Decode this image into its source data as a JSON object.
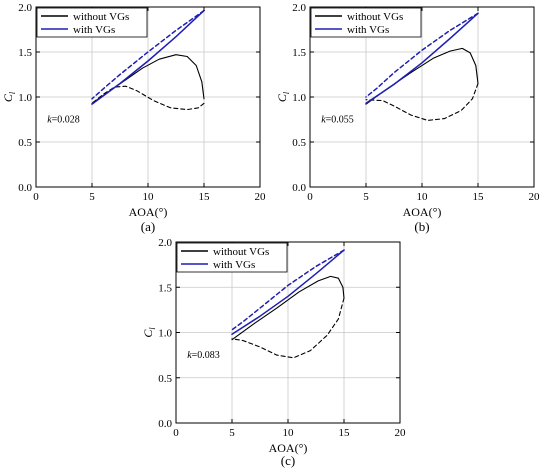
{
  "chart_data": [
    {
      "type": "line",
      "panel_label": "(a)",
      "annotation": {
        "k_symbol": "k",
        "value": "=0.028"
      },
      "xlabel": "AOA(°)",
      "ylabel": {
        "symbol": "C",
        "subscript": "l"
      },
      "xlim": [
        0,
        20
      ],
      "ylim": [
        0.0,
        2.0
      ],
      "xticks": [
        "0",
        "5",
        "10",
        "15",
        "20"
      ],
      "yticks": [
        "0.0",
        "0.5",
        "1.0",
        "1.5",
        "2.0"
      ],
      "grid": true,
      "legend_position": "top-left",
      "series": [
        {
          "name": "without VGs",
          "color": "#000000",
          "segment": "upstroke",
          "dash": false,
          "x": [
            5.0,
            6.5,
            8.0,
            9.5,
            11.0,
            12.5,
            13.5,
            14.3,
            14.8,
            15.0
          ],
          "y": [
            0.93,
            1.06,
            1.19,
            1.32,
            1.42,
            1.47,
            1.45,
            1.35,
            1.17,
            0.98
          ]
        },
        {
          "name": "without VGs",
          "color": "#000000",
          "segment": "downstroke",
          "dash": true,
          "x": [
            15.0,
            14.5,
            13.5,
            12.0,
            10.5,
            9.0,
            8.0,
            7.0,
            6.0,
            5.0
          ],
          "y": [
            0.93,
            0.88,
            0.86,
            0.88,
            0.96,
            1.07,
            1.12,
            1.11,
            1.03,
            0.93
          ]
        },
        {
          "name": "with VGs",
          "color": "#1f1fb4",
          "segment": "upstroke",
          "dash": false,
          "x": [
            5.0,
            7.5,
            10.0,
            12.5,
            15.0
          ],
          "y": [
            0.92,
            1.15,
            1.4,
            1.67,
            1.96
          ]
        },
        {
          "name": "with VGs",
          "color": "#1f1fb4",
          "segment": "downstroke",
          "dash": true,
          "x": [
            15.0,
            12.5,
            10.0,
            7.5,
            6.0,
            5.0
          ],
          "y": [
            1.96,
            1.74,
            1.5,
            1.25,
            1.09,
            0.98
          ]
        }
      ]
    },
    {
      "type": "line",
      "panel_label": "(b)",
      "annotation": {
        "k_symbol": "k",
        "value": "=0.055"
      },
      "xlabel": "AOA(°)",
      "ylabel": {
        "symbol": "C",
        "subscript": "l"
      },
      "xlim": [
        0,
        20
      ],
      "ylim": [
        0.0,
        2.0
      ],
      "xticks": [
        "0",
        "5",
        "10",
        "15",
        "20"
      ],
      "yticks": [
        "0.0",
        "0.5",
        "1.0",
        "1.5",
        "2.0"
      ],
      "grid": true,
      "legend_position": "top-left",
      "series": [
        {
          "name": "without VGs",
          "color": "#000000",
          "segment": "upstroke",
          "dash": false,
          "x": [
            5.0,
            7.0,
            9.0,
            11.0,
            12.5,
            13.6,
            14.3,
            14.8,
            15.0
          ],
          "y": [
            0.92,
            1.1,
            1.27,
            1.43,
            1.51,
            1.54,
            1.49,
            1.35,
            1.15
          ]
        },
        {
          "name": "without VGs",
          "color": "#000000",
          "segment": "downstroke",
          "dash": true,
          "x": [
            15.0,
            14.5,
            13.5,
            12.0,
            10.5,
            9.0,
            7.5,
            6.5,
            5.0
          ],
          "y": [
            1.15,
            0.98,
            0.85,
            0.76,
            0.74,
            0.8,
            0.9,
            0.96,
            0.97
          ]
        },
        {
          "name": "with VGs",
          "color": "#1f1fb4",
          "segment": "upstroke",
          "dash": false,
          "x": [
            5.0,
            7.5,
            10.0,
            12.5,
            15.0
          ],
          "y": [
            0.93,
            1.14,
            1.38,
            1.65,
            1.93
          ]
        },
        {
          "name": "with VGs",
          "color": "#1f1fb4",
          "segment": "downstroke",
          "dash": true,
          "x": [
            15.0,
            12.5,
            10.0,
            7.5,
            6.0,
            5.0
          ],
          "y": [
            1.93,
            1.74,
            1.52,
            1.27,
            1.1,
            1.0
          ]
        }
      ]
    },
    {
      "type": "line",
      "panel_label": "(c)",
      "annotation": {
        "k_symbol": "k",
        "value": "=0.083"
      },
      "xlabel": "AOA(°)",
      "ylabel": {
        "symbol": "C",
        "subscript": "l"
      },
      "xlim": [
        0,
        20
      ],
      "ylim": [
        0.0,
        2.0
      ],
      "xticks": [
        "0",
        "5",
        "10",
        "15",
        "20"
      ],
      "yticks": [
        "0.0",
        "0.5",
        "1.0",
        "1.5",
        "2.0"
      ],
      "grid": true,
      "legend_position": "top-left",
      "series": [
        {
          "name": "without VGs",
          "color": "#000000",
          "segment": "upstroke",
          "dash": false,
          "x": [
            5.0,
            7.0,
            9.0,
            11.0,
            12.7,
            13.8,
            14.5,
            14.9,
            15.0
          ],
          "y": [
            0.92,
            1.1,
            1.27,
            1.45,
            1.57,
            1.62,
            1.6,
            1.5,
            1.38
          ]
        },
        {
          "name": "without VGs",
          "color": "#000000",
          "segment": "downstroke",
          "dash": true,
          "x": [
            15.0,
            14.5,
            13.5,
            12.0,
            10.5,
            9.0,
            7.5,
            6.0,
            5.0
          ],
          "y": [
            1.38,
            1.15,
            0.97,
            0.8,
            0.72,
            0.75,
            0.84,
            0.91,
            0.93
          ]
        },
        {
          "name": "with VGs",
          "color": "#1f1fb4",
          "segment": "upstroke",
          "dash": false,
          "x": [
            5.0,
            7.5,
            10.0,
            12.5,
            15.0
          ],
          "y": [
            0.98,
            1.18,
            1.4,
            1.65,
            1.91
          ]
        },
        {
          "name": "with VGs",
          "color": "#1f1fb4",
          "segment": "downstroke",
          "dash": true,
          "x": [
            15.0,
            12.5,
            10.0,
            7.5,
            6.0,
            5.0
          ],
          "y": [
            1.91,
            1.73,
            1.52,
            1.27,
            1.12,
            1.03
          ]
        }
      ]
    }
  ]
}
